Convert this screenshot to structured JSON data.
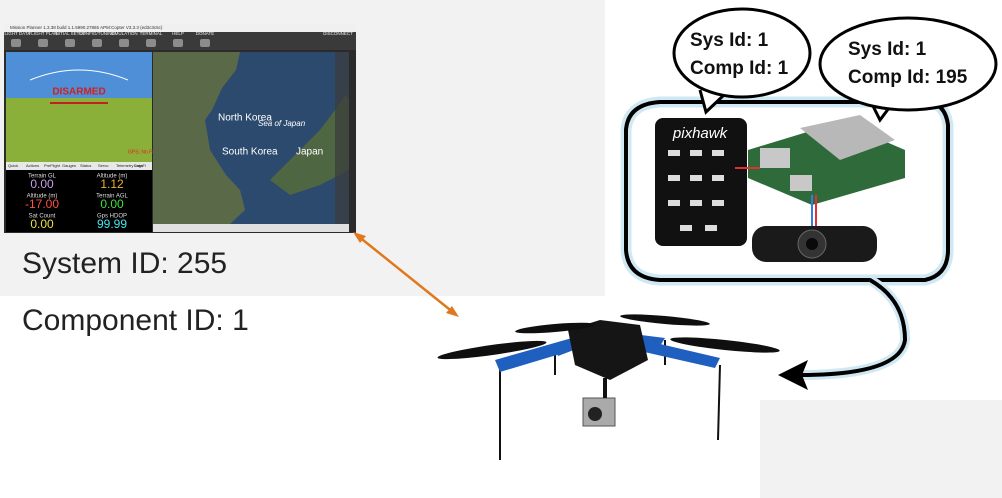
{
  "ground_station": {
    "app_title": "Mission Planner 1.3.38 build 1.1.5990.27865 APM:Copter V3.3.3 (ed3c3c5c)",
    "menu": [
      "FLIGHT DATA",
      "FLIGHT PLAN",
      "INITIAL SETUP",
      "CONFIG/TUNING",
      "SIMULATION",
      "TERMINAL",
      "HELP",
      "DONATE"
    ],
    "disconnect": "DISCONNECT",
    "hud_status": "DISARMED",
    "hud_gps": "GPS: No Fix",
    "tabs": [
      "Quick",
      "Actions",
      "PreFlight",
      "Gauges",
      "Status",
      "Servo",
      "Telemetry Logs",
      "DataFl"
    ],
    "readouts": [
      {
        "label": "Terrain GL",
        "value": "0.00",
        "color": "#c8a0e8"
      },
      {
        "label": "Altitude (m)",
        "value": "1.12",
        "color": "#f0b030"
      },
      {
        "label": "Altitude (m)",
        "value": "-17.00",
        "color": "#ff5040"
      },
      {
        "label": "Terrain AGL",
        "value": "0.00",
        "color": "#40e040"
      },
      {
        "label": "Sat Count",
        "value": "0.00",
        "color": "#f0e040"
      },
      {
        "label": "Gps HDOP",
        "value": "99.99",
        "color": "#40e8f0"
      }
    ],
    "map_labels": [
      "North Korea",
      "Sea of Japan",
      "South Korea",
      "Japan"
    ],
    "system_id": "System ID: 255",
    "component_id": "Component ID: 1"
  },
  "autopilot_label": "pixhawk",
  "onboard": [
    {
      "sys": "Sys Id: 1",
      "comp": "Comp Id: 1"
    },
    {
      "sys": "Sys Id: 1",
      "comp": "Comp Id: 195"
    }
  ]
}
